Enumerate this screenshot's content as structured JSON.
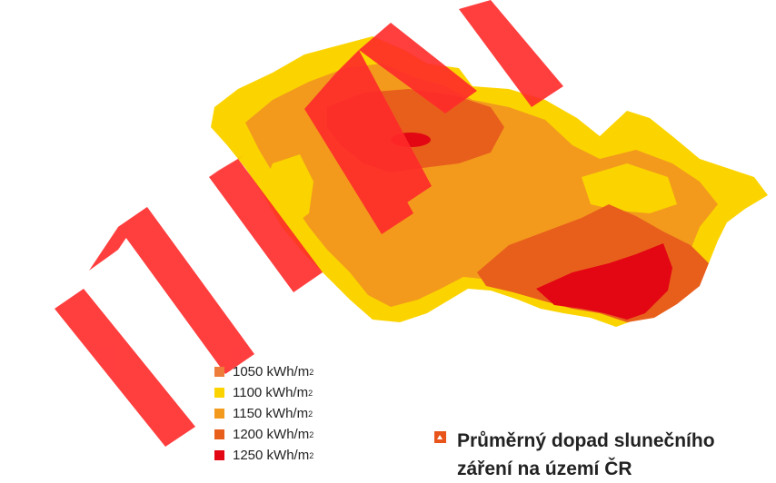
{
  "legend": {
    "items": [
      {
        "value": "1050 kWh/m",
        "sup": "2",
        "color": "#ee7d3c"
      },
      {
        "value": "1100 kWh/m",
        "sup": "2",
        "color": "#fbd400"
      },
      {
        "value": "1150 kWh/m",
        "sup": "2",
        "color": "#f39a1c"
      },
      {
        "value": "1200 kWh/m",
        "sup": "2",
        "color": "#e85f1c"
      },
      {
        "value": "1250 kWh/m",
        "sup": "2",
        "color": "#e30613"
      }
    ]
  },
  "caption": {
    "line1": "Průměrný dopad slunečního",
    "line2": "záření na území ČR",
    "icon": "chevron-up-icon"
  },
  "watermark": {
    "text": "NEAKTUALNI",
    "color": "#ff2a2a"
  },
  "map": {
    "region": "Česká republika"
  }
}
